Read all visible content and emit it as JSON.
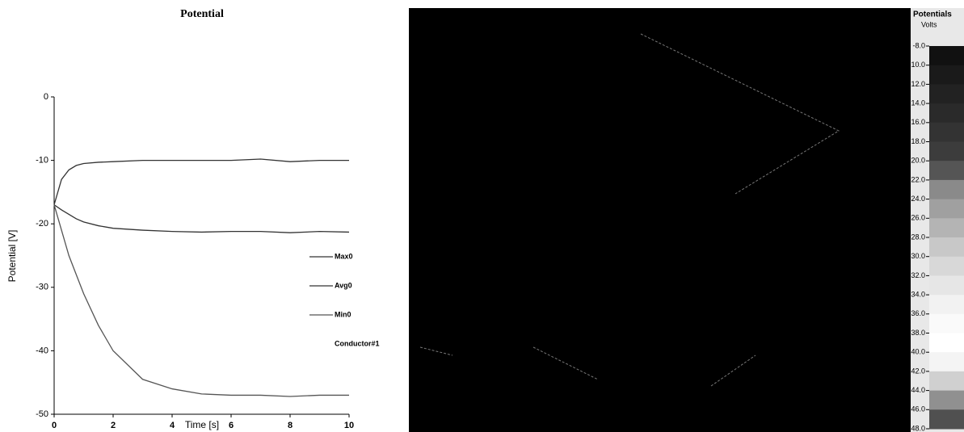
{
  "chart_data": [
    {
      "type": "line",
      "title": "Potential",
      "x_label": "Time [s]",
      "y_label": "Potential [V]",
      "x": [
        0,
        0.25,
        0.5,
        0.75,
        1,
        1.5,
        2,
        3,
        4,
        5,
        6,
        7,
        8,
        9,
        10
      ],
      "series": [
        {
          "name": "Max0",
          "color": "#333333",
          "values": [
            -17,
            -13,
            -11.5,
            -10.8,
            -10.5,
            -10.3,
            -10.2,
            -10,
            -10,
            -10,
            -10,
            -9.8,
            -10.2,
            -10,
            -10
          ]
        },
        {
          "name": "Avg0",
          "color": "#333333",
          "values": [
            -17,
            -17.8,
            -18.5,
            -19.2,
            -19.7,
            -20.3,
            -20.7,
            -21,
            -21.2,
            -21.3,
            -21.2,
            -21.2,
            -21.4,
            -21.2,
            -21.3
          ]
        },
        {
          "name": "Min0",
          "color": "#555555",
          "values": [
            -17,
            -21,
            -25,
            -28,
            -31,
            -36,
            -40,
            -44.5,
            -46,
            -46.8,
            -47,
            -47,
            -47.2,
            -47,
            -47
          ]
        },
        {
          "name": "Conductor#1",
          "color": "#333333",
          "values": [
            null,
            null,
            null,
            null,
            null,
            null,
            null,
            null,
            null,
            null,
            null,
            null,
            null,
            null,
            null
          ]
        }
      ],
      "xlim": [
        0,
        10
      ],
      "xticks": [
        0,
        2,
        4,
        6,
        8,
        10
      ],
      "ylim": [
        -50,
        0
      ],
      "yticks": [
        -50,
        -40,
        -30,
        -20,
        -10,
        0
      ]
    },
    {
      "type": "colorbar",
      "title": "Potentials",
      "unit": "Volts",
      "ylim": [
        -48,
        -8
      ],
      "yticks": [
        {
          "value": -8,
          "label": "-8.0"
        },
        {
          "value": -10,
          "label": "-10.0"
        },
        {
          "value": -12,
          "label": "-12.0"
        },
        {
          "value": -14,
          "label": "-14.0"
        },
        {
          "value": -16,
          "label": "-16.0"
        },
        {
          "value": -18,
          "label": "-18.0"
        },
        {
          "value": -20,
          "label": "-20.0"
        },
        {
          "value": -22,
          "label": "-22.0"
        },
        {
          "value": -24,
          "label": "-24.0"
        },
        {
          "value": -26,
          "label": "-26.0"
        },
        {
          "value": -28,
          "label": "-28.0"
        },
        {
          "value": -30,
          "label": "-30.0"
        },
        {
          "value": -32,
          "label": "-32.0"
        },
        {
          "value": -34,
          "label": "-34.0"
        },
        {
          "value": -36,
          "label": "-36.0"
        },
        {
          "value": -38,
          "label": "-38.0"
        },
        {
          "value": -40,
          "label": "-40.0"
        },
        {
          "value": -42,
          "label": "-42.0"
        },
        {
          "value": -44,
          "label": "-44.0"
        },
        {
          "value": -46,
          "label": "-46.0"
        },
        {
          "value": -48,
          "label": "-48.0"
        }
      ],
      "colors": [
        "#111111",
        "#1a1a1a",
        "#222222",
        "#2a2a2a",
        "#333333",
        "#3c3c3c",
        "#555555",
        "#8a8a8a",
        "#a0a0a0",
        "#b4b4b4",
        "#c8c8c8",
        "#d8d8d8",
        "#e6e6e6",
        "#f2f2f2",
        "#fafafa",
        "#ffffff",
        "#f4f4f4",
        "#d0d0d0",
        "#909090",
        "#505050"
      ]
    }
  ]
}
